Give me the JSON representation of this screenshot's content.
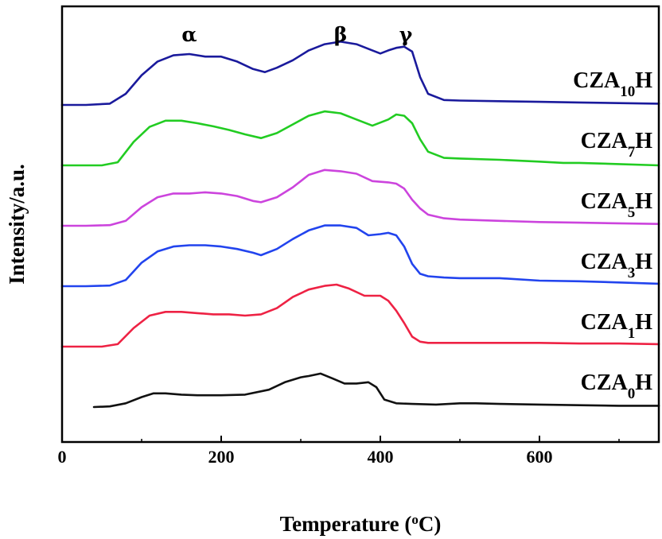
{
  "chart_data": {
    "type": "line",
    "xlabel": "Temperature (",
    "xlabel_sup": "o",
    "xlabel_tail": "C)",
    "ylabel": "Intensity/a.u.",
    "xlim": [
      0,
      750
    ],
    "xticks": [
      0,
      200,
      400,
      600
    ],
    "xtick_labels": [
      "0",
      "200",
      "400",
      "600"
    ],
    "yticks_shown": false,
    "grid": false,
    "legend": "none (inline series labels at right)",
    "annotations": [
      {
        "text": "α",
        "x": 160
      },
      {
        "text": "β",
        "x": 350
      },
      {
        "text": "γ",
        "x": 432
      }
    ],
    "series": [
      {
        "name": "CZA10H",
        "label_main": "CZA",
        "label_sub": "10",
        "label_tail": "H",
        "color": "#1a1a9c",
        "offset": 5,
        "x": [
          0,
          30,
          60,
          80,
          100,
          120,
          140,
          160,
          180,
          200,
          220,
          240,
          255,
          270,
          290,
          310,
          330,
          350,
          370,
          390,
          400,
          410,
          420,
          430,
          440,
          450,
          460,
          480,
          500,
          550,
          600,
          650,
          700,
          750
        ],
        "y": [
          0,
          0,
          0.02,
          0.18,
          0.48,
          0.7,
          0.8,
          0.82,
          0.78,
          0.78,
          0.7,
          0.58,
          0.53,
          0.6,
          0.72,
          0.88,
          0.98,
          1.02,
          0.98,
          0.88,
          0.83,
          0.88,
          0.92,
          0.94,
          0.86,
          0.45,
          0.18,
          0.08,
          0.07,
          0.06,
          0.05,
          0.04,
          0.03,
          0.02
        ]
      },
      {
        "name": "CZA7H",
        "label_main": "CZA",
        "label_sub": "7",
        "label_tail": "H",
        "color": "#22cc22",
        "offset": 4,
        "x": [
          0,
          30,
          50,
          70,
          90,
          110,
          130,
          150,
          170,
          190,
          210,
          230,
          250,
          270,
          290,
          310,
          330,
          350,
          370,
          390,
          410,
          420,
          430,
          440,
          450,
          460,
          480,
          500,
          550,
          600,
          630,
          650,
          700,
          750
        ],
        "y": [
          0,
          0,
          0,
          0.05,
          0.38,
          0.62,
          0.72,
          0.72,
          0.68,
          0.63,
          0.57,
          0.5,
          0.44,
          0.52,
          0.66,
          0.8,
          0.87,
          0.84,
          0.74,
          0.64,
          0.74,
          0.82,
          0.8,
          0.68,
          0.42,
          0.22,
          0.12,
          0.11,
          0.09,
          0.06,
          0.04,
          0.04,
          0.02,
          0.0
        ]
      },
      {
        "name": "CZA5H",
        "label_main": "CZA",
        "label_sub": "5",
        "label_tail": "H",
        "color": "#cc44dd",
        "offset": 3,
        "x": [
          0,
          30,
          60,
          80,
          100,
          120,
          140,
          160,
          180,
          200,
          220,
          240,
          250,
          270,
          290,
          310,
          330,
          350,
          370,
          390,
          410,
          420,
          430,
          440,
          450,
          460,
          480,
          500,
          550,
          600,
          650,
          700,
          750
        ],
        "y": [
          0,
          0,
          0.01,
          0.08,
          0.3,
          0.46,
          0.52,
          0.52,
          0.54,
          0.52,
          0.48,
          0.4,
          0.38,
          0.46,
          0.62,
          0.82,
          0.9,
          0.88,
          0.84,
          0.72,
          0.7,
          0.68,
          0.6,
          0.42,
          0.28,
          0.18,
          0.12,
          0.1,
          0.08,
          0.06,
          0.05,
          0.04,
          0.03
        ]
      },
      {
        "name": "CZA3H",
        "label_main": "CZA",
        "label_sub": "3",
        "label_tail": "H",
        "color": "#2244ee",
        "offset": 2,
        "x": [
          0,
          30,
          60,
          80,
          100,
          120,
          140,
          160,
          180,
          200,
          220,
          240,
          250,
          270,
          290,
          310,
          330,
          350,
          370,
          385,
          400,
          410,
          420,
          430,
          440,
          450,
          460,
          480,
          500,
          550,
          600,
          650,
          700,
          750
        ],
        "y": [
          0,
          0,
          0.01,
          0.1,
          0.38,
          0.56,
          0.64,
          0.66,
          0.66,
          0.64,
          0.6,
          0.54,
          0.5,
          0.6,
          0.76,
          0.9,
          0.98,
          0.98,
          0.94,
          0.82,
          0.84,
          0.86,
          0.82,
          0.64,
          0.36,
          0.2,
          0.16,
          0.14,
          0.13,
          0.13,
          0.09,
          0.08,
          0.06,
          0.04
        ]
      },
      {
        "name": "CZA1H",
        "label_main": "CZA",
        "label_sub": "1",
        "label_tail": "H",
        "color": "#ee2244",
        "offset": 1,
        "x": [
          0,
          30,
          50,
          70,
          90,
          110,
          130,
          150,
          170,
          190,
          210,
          230,
          250,
          270,
          290,
          310,
          330,
          345,
          360,
          380,
          400,
          410,
          420,
          430,
          440,
          450,
          460,
          480,
          500,
          550,
          600,
          650,
          700,
          750
        ],
        "y": [
          0,
          0,
          0,
          0.04,
          0.3,
          0.5,
          0.56,
          0.56,
          0.54,
          0.52,
          0.52,
          0.5,
          0.52,
          0.62,
          0.8,
          0.92,
          0.98,
          1.0,
          0.94,
          0.82,
          0.82,
          0.74,
          0.58,
          0.38,
          0.16,
          0.08,
          0.06,
          0.06,
          0.06,
          0.06,
          0.06,
          0.05,
          0.05,
          0.04
        ]
      },
      {
        "name": "CZA0H",
        "label_main": "CZA",
        "label_sub": "0",
        "label_tail": "H",
        "color": "#111111",
        "offset": 0,
        "x": [
          40,
          60,
          80,
          100,
          115,
          130,
          150,
          170,
          200,
          230,
          260,
          280,
          300,
          310,
          325,
          340,
          355,
          370,
          385,
          395,
          405,
          420,
          440,
          470,
          500,
          520,
          550,
          600,
          650,
          700,
          750
        ],
        "y": [
          0,
          0.01,
          0.06,
          0.16,
          0.22,
          0.22,
          0.2,
          0.19,
          0.19,
          0.2,
          0.28,
          0.4,
          0.48,
          0.5,
          0.54,
          0.46,
          0.38,
          0.38,
          0.4,
          0.32,
          0.12,
          0.06,
          0.05,
          0.04,
          0.06,
          0.06,
          0.05,
          0.04,
          0.03,
          0.02,
          0.02
        ]
      }
    ]
  }
}
